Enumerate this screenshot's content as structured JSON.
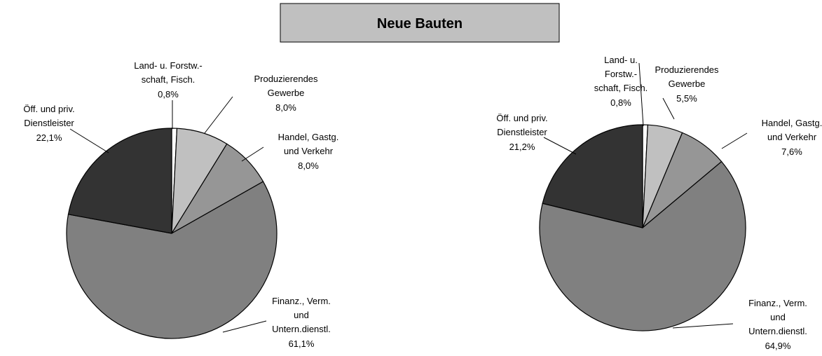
{
  "title": "Neue Bauten",
  "chart_data": [
    {
      "type": "pie",
      "categories": [
        [
          "Land- u. Forstw.-",
          "schaft, Fisch."
        ],
        [
          "Produzierendes",
          "Gewerbe"
        ],
        [
          "Handel, Gastg.",
          "und Verkehr"
        ],
        [
          "Finanz., Verm.",
          "und",
          "Untern.dienstl."
        ],
        [
          "Öff. und priv.",
          "Dienstleister"
        ]
      ],
      "values": [
        0.8,
        8.0,
        8.0,
        61.1,
        22.1
      ],
      "value_labels": [
        "0,8%",
        "8,0%",
        "8,0%",
        "61,1%",
        "22,1%"
      ],
      "colors": [
        "#ffffff",
        "#c0c0c0",
        "#969696",
        "#808080",
        "#333333"
      ]
    },
    {
      "type": "pie",
      "categories": [
        [
          "Land- u.",
          "Forstw.-",
          "schaft, Fisch."
        ],
        [
          "Produzierendes",
          "Gewerbe"
        ],
        [
          "Handel, Gastg.",
          "und Verkehr"
        ],
        [
          "Finanz., Verm.",
          "und",
          "Untern.dienstl."
        ],
        [
          "Öff. und priv.",
          "Dienstleister"
        ]
      ],
      "values": [
        0.8,
        5.5,
        7.6,
        64.9,
        21.2
      ],
      "value_labels": [
        "0,8%",
        "5,5%",
        "7,6%",
        "64,9%",
        "21,2%"
      ],
      "colors": [
        "#ffffff",
        "#c0c0c0",
        "#969696",
        "#808080",
        "#333333"
      ]
    }
  ]
}
